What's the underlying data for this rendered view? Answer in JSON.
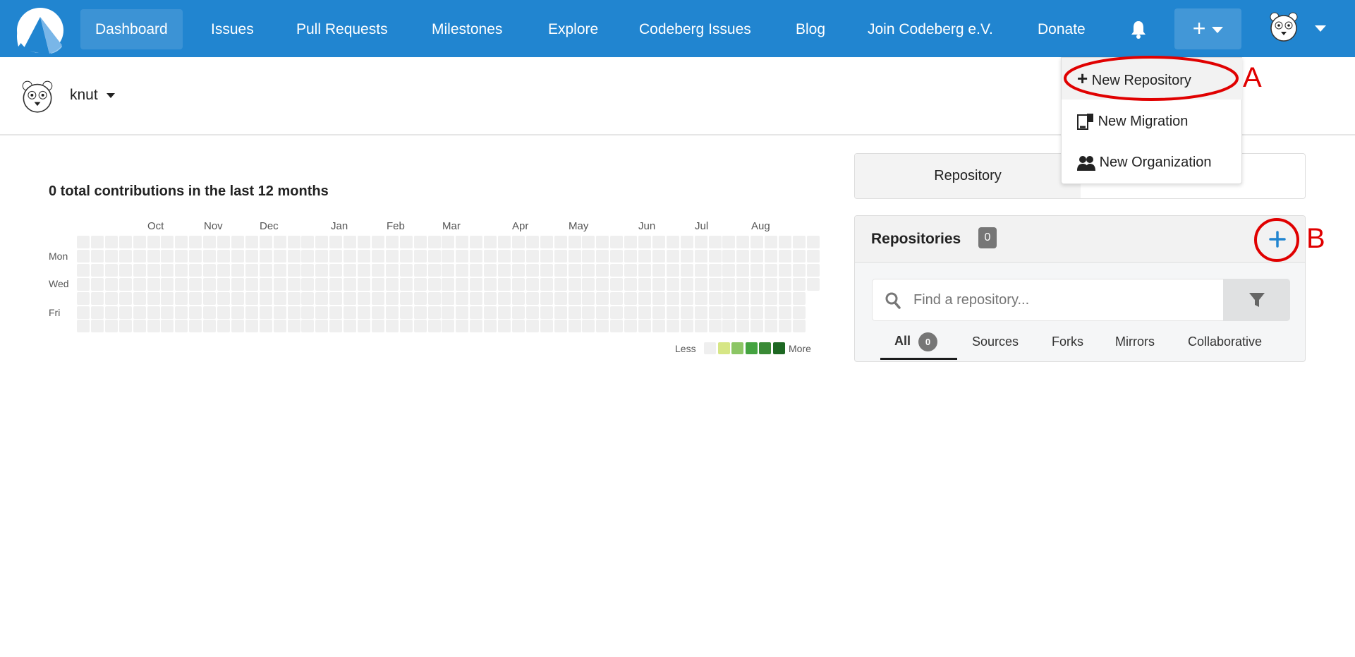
{
  "nav": {
    "items": [
      {
        "label": "Dashboard",
        "active": true
      },
      {
        "label": "Issues"
      },
      {
        "label": "Pull Requests"
      },
      {
        "label": "Milestones"
      },
      {
        "label": "Explore"
      },
      {
        "label": "Codeberg Issues"
      },
      {
        "label": "Blog"
      },
      {
        "label": "Join Codeberg e.V."
      },
      {
        "label": "Donate"
      }
    ],
    "plus_icon": "plus-icon",
    "bell_icon": "bell-icon",
    "color": "#2185d0"
  },
  "context": {
    "user": "knut"
  },
  "dropdown": {
    "items": [
      {
        "label": "New Repository",
        "icon": "plus-icon"
      },
      {
        "label": "New Migration",
        "icon": "migration-icon"
      },
      {
        "label": "New Organization",
        "icon": "organization-icon"
      }
    ]
  },
  "heatmap": {
    "title": "0 total contributions in the last 12 months",
    "months": [
      "Oct",
      "Nov",
      "Dec",
      "Jan",
      "Feb",
      "Mar",
      "Apr",
      "May",
      "Jun",
      "Jul",
      "Aug"
    ],
    "days": [
      "Mon",
      "Wed",
      "Fri"
    ],
    "less": "Less",
    "more": "More",
    "scale_colors": [
      "#efefef",
      "#d6e685",
      "#8cc665",
      "#44a340",
      "#3a8a36",
      "#1e6823"
    ]
  },
  "side": {
    "tabs": [
      "Repository",
      ""
    ],
    "repos_title": "Repositories",
    "repos_count": "0",
    "search_placeholder": "Find a repository...",
    "filter_tabs": [
      {
        "label": "All",
        "count": "0"
      },
      {
        "label": "Sources"
      },
      {
        "label": "Forks"
      },
      {
        "label": "Mirrors"
      },
      {
        "label": "Collaborative"
      }
    ]
  },
  "annotations": {
    "a": "A",
    "b": "B",
    "color": "#e00000"
  }
}
